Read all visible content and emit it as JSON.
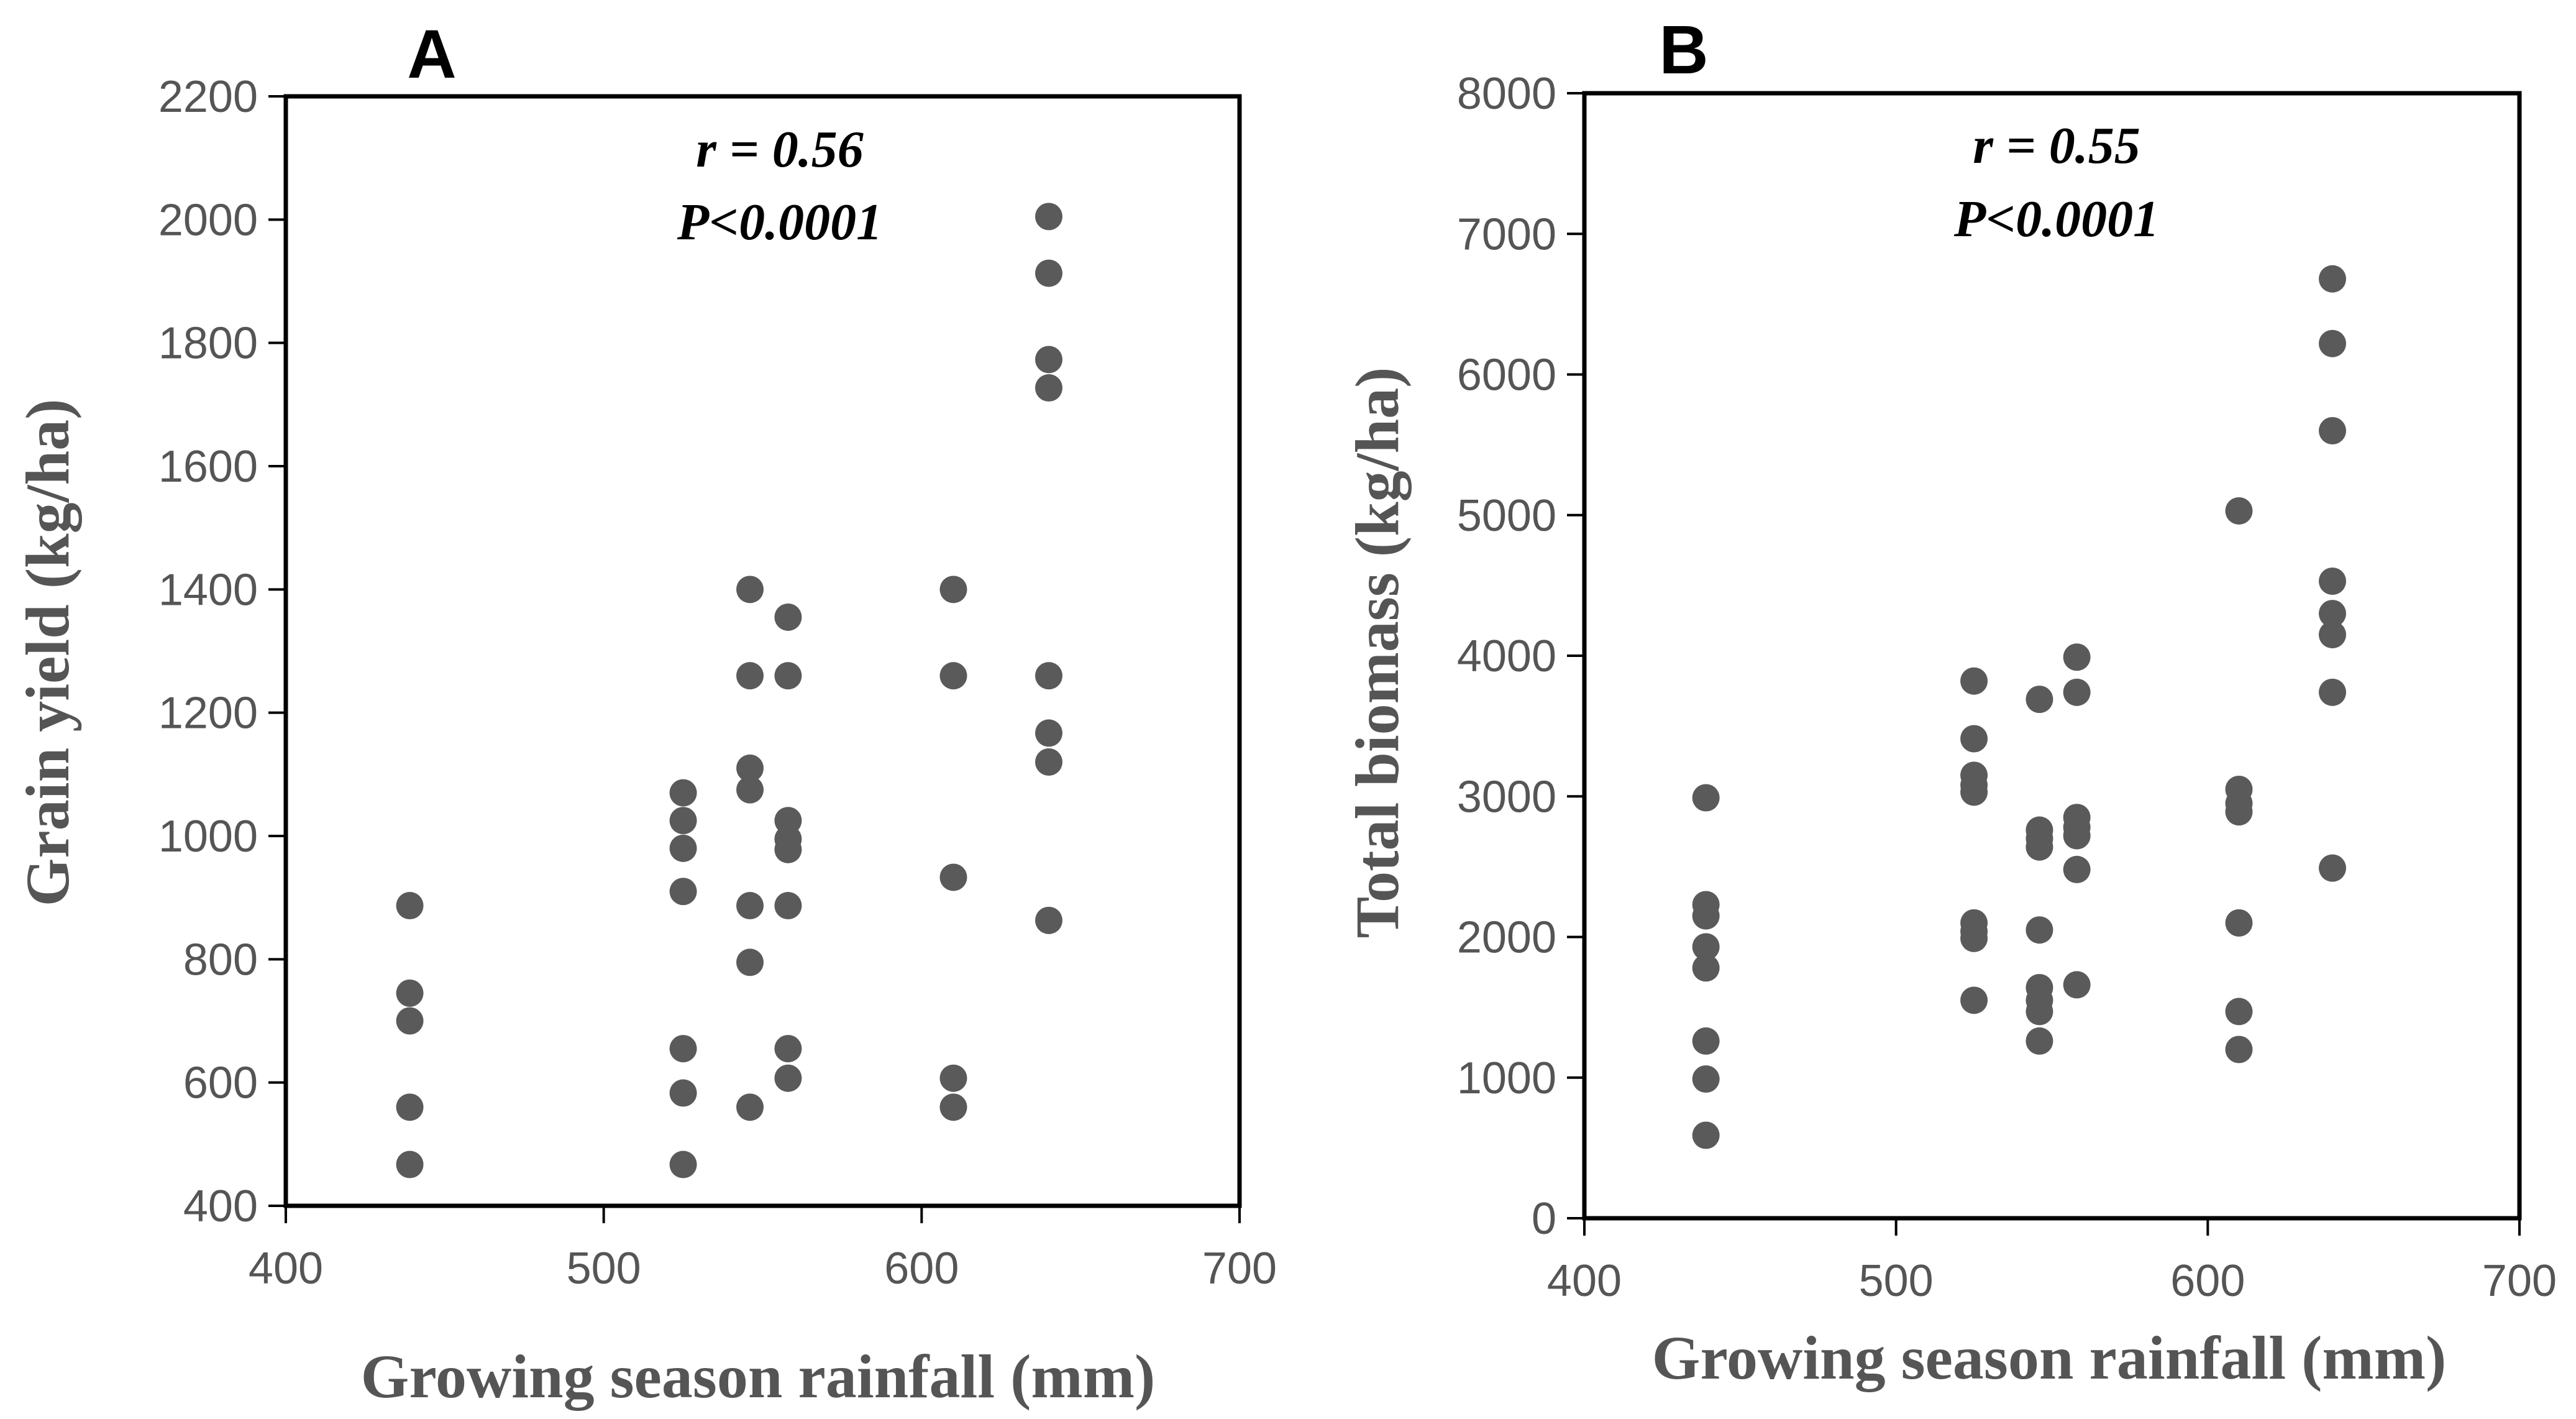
{
  "colors": {
    "point": "#5a5a5a",
    "axis": "#000000",
    "tick_text": "#555555"
  },
  "chart_data": [
    {
      "type": "scatter",
      "panel_label": "A",
      "title": "",
      "xlabel": "Growing season rainfall (mm)",
      "ylabel": "Grain yield (kg/ha)",
      "xlim": [
        400,
        700
      ],
      "ylim": [
        400,
        2200
      ],
      "xticks": [
        400,
        500,
        600,
        700
      ],
      "yticks": [
        400,
        600,
        800,
        1000,
        1200,
        1400,
        1600,
        1800,
        2000,
        2200
      ],
      "xtick_labels": [
        "400",
        "500",
        "600",
        "700"
      ],
      "ytick_labels": [
        "400",
        "600",
        "800",
        "1000",
        "1200",
        "1400",
        "1600",
        "1800",
        "2000",
        "2200"
      ],
      "stats": [
        "r = 0.56",
        "P<0.0001"
      ],
      "points": [
        {
          "x": 439,
          "y": 887
        },
        {
          "x": 439,
          "y": 745
        },
        {
          "x": 439,
          "y": 700
        },
        {
          "x": 439,
          "y": 560
        },
        {
          "x": 439,
          "y": 467
        },
        {
          "x": 525,
          "y": 1070
        },
        {
          "x": 525,
          "y": 1025
        },
        {
          "x": 525,
          "y": 980
        },
        {
          "x": 525,
          "y": 910
        },
        {
          "x": 525,
          "y": 655
        },
        {
          "x": 525,
          "y": 583
        },
        {
          "x": 525,
          "y": 467
        },
        {
          "x": 546,
          "y": 1400
        },
        {
          "x": 546,
          "y": 1260
        },
        {
          "x": 546,
          "y": 1110
        },
        {
          "x": 546,
          "y": 1075
        },
        {
          "x": 546,
          "y": 887
        },
        {
          "x": 546,
          "y": 795
        },
        {
          "x": 546,
          "y": 560
        },
        {
          "x": 558,
          "y": 1355
        },
        {
          "x": 558,
          "y": 1260
        },
        {
          "x": 558,
          "y": 1025
        },
        {
          "x": 558,
          "y": 995
        },
        {
          "x": 558,
          "y": 978
        },
        {
          "x": 558,
          "y": 887
        },
        {
          "x": 558,
          "y": 655
        },
        {
          "x": 558,
          "y": 607
        },
        {
          "x": 610,
          "y": 1400
        },
        {
          "x": 610,
          "y": 1260
        },
        {
          "x": 610,
          "y": 933
        },
        {
          "x": 610,
          "y": 607
        },
        {
          "x": 610,
          "y": 560
        },
        {
          "x": 640,
          "y": 2005
        },
        {
          "x": 640,
          "y": 1913
        },
        {
          "x": 640,
          "y": 1773
        },
        {
          "x": 640,
          "y": 1727
        },
        {
          "x": 640,
          "y": 1260
        },
        {
          "x": 640,
          "y": 1167
        },
        {
          "x": 640,
          "y": 1120
        },
        {
          "x": 640,
          "y": 863
        }
      ]
    },
    {
      "type": "scatter",
      "panel_label": "B",
      "title": "",
      "xlabel": "Growing season rainfall (mm)",
      "ylabel": "Total biomass (kg/ha)",
      "xlim": [
        400,
        700
      ],
      "ylim": [
        0,
        8000
      ],
      "xticks": [
        400,
        500,
        600,
        700
      ],
      "yticks": [
        0,
        1000,
        2000,
        3000,
        4000,
        5000,
        6000,
        7000,
        8000
      ],
      "xtick_labels": [
        "400",
        "500",
        "600",
        "700"
      ],
      "ytick_labels": [
        "0",
        "1000",
        "2000",
        "3000",
        "4000",
        "5000",
        "6000",
        "7000",
        "8000"
      ],
      "stats": [
        "r = 0.55",
        "P<0.0001"
      ],
      "points": [
        {
          "x": 439,
          "y": 2990
        },
        {
          "x": 439,
          "y": 2230
        },
        {
          "x": 439,
          "y": 2150
        },
        {
          "x": 439,
          "y": 1930
        },
        {
          "x": 439,
          "y": 1780
        },
        {
          "x": 439,
          "y": 1260
        },
        {
          "x": 439,
          "y": 990
        },
        {
          "x": 439,
          "y": 590
        },
        {
          "x": 525,
          "y": 3820
        },
        {
          "x": 525,
          "y": 3410
        },
        {
          "x": 525,
          "y": 3150
        },
        {
          "x": 525,
          "y": 3080
        },
        {
          "x": 525,
          "y": 3030
        },
        {
          "x": 525,
          "y": 2100
        },
        {
          "x": 525,
          "y": 2040
        },
        {
          "x": 525,
          "y": 1990
        },
        {
          "x": 525,
          "y": 1550
        },
        {
          "x": 546,
          "y": 3690
        },
        {
          "x": 546,
          "y": 2760
        },
        {
          "x": 546,
          "y": 2700
        },
        {
          "x": 546,
          "y": 2640
        },
        {
          "x": 546,
          "y": 2050
        },
        {
          "x": 546,
          "y": 1640
        },
        {
          "x": 546,
          "y": 1550
        },
        {
          "x": 546,
          "y": 1470
        },
        {
          "x": 546,
          "y": 1260
        },
        {
          "x": 558,
          "y": 3990
        },
        {
          "x": 558,
          "y": 3740
        },
        {
          "x": 558,
          "y": 2850
        },
        {
          "x": 558,
          "y": 2780
        },
        {
          "x": 558,
          "y": 2720
        },
        {
          "x": 558,
          "y": 2480
        },
        {
          "x": 558,
          "y": 1660
        },
        {
          "x": 610,
          "y": 5030
        },
        {
          "x": 610,
          "y": 3050
        },
        {
          "x": 610,
          "y": 2950
        },
        {
          "x": 610,
          "y": 2890
        },
        {
          "x": 610,
          "y": 2100
        },
        {
          "x": 610,
          "y": 1470
        },
        {
          "x": 610,
          "y": 1200
        },
        {
          "x": 640,
          "y": 6680
        },
        {
          "x": 640,
          "y": 6220
        },
        {
          "x": 640,
          "y": 5600
        },
        {
          "x": 640,
          "y": 4530
        },
        {
          "x": 640,
          "y": 4300
        },
        {
          "x": 640,
          "y": 4150
        },
        {
          "x": 640,
          "y": 3740
        },
        {
          "x": 640,
          "y": 2490
        }
      ]
    }
  ]
}
